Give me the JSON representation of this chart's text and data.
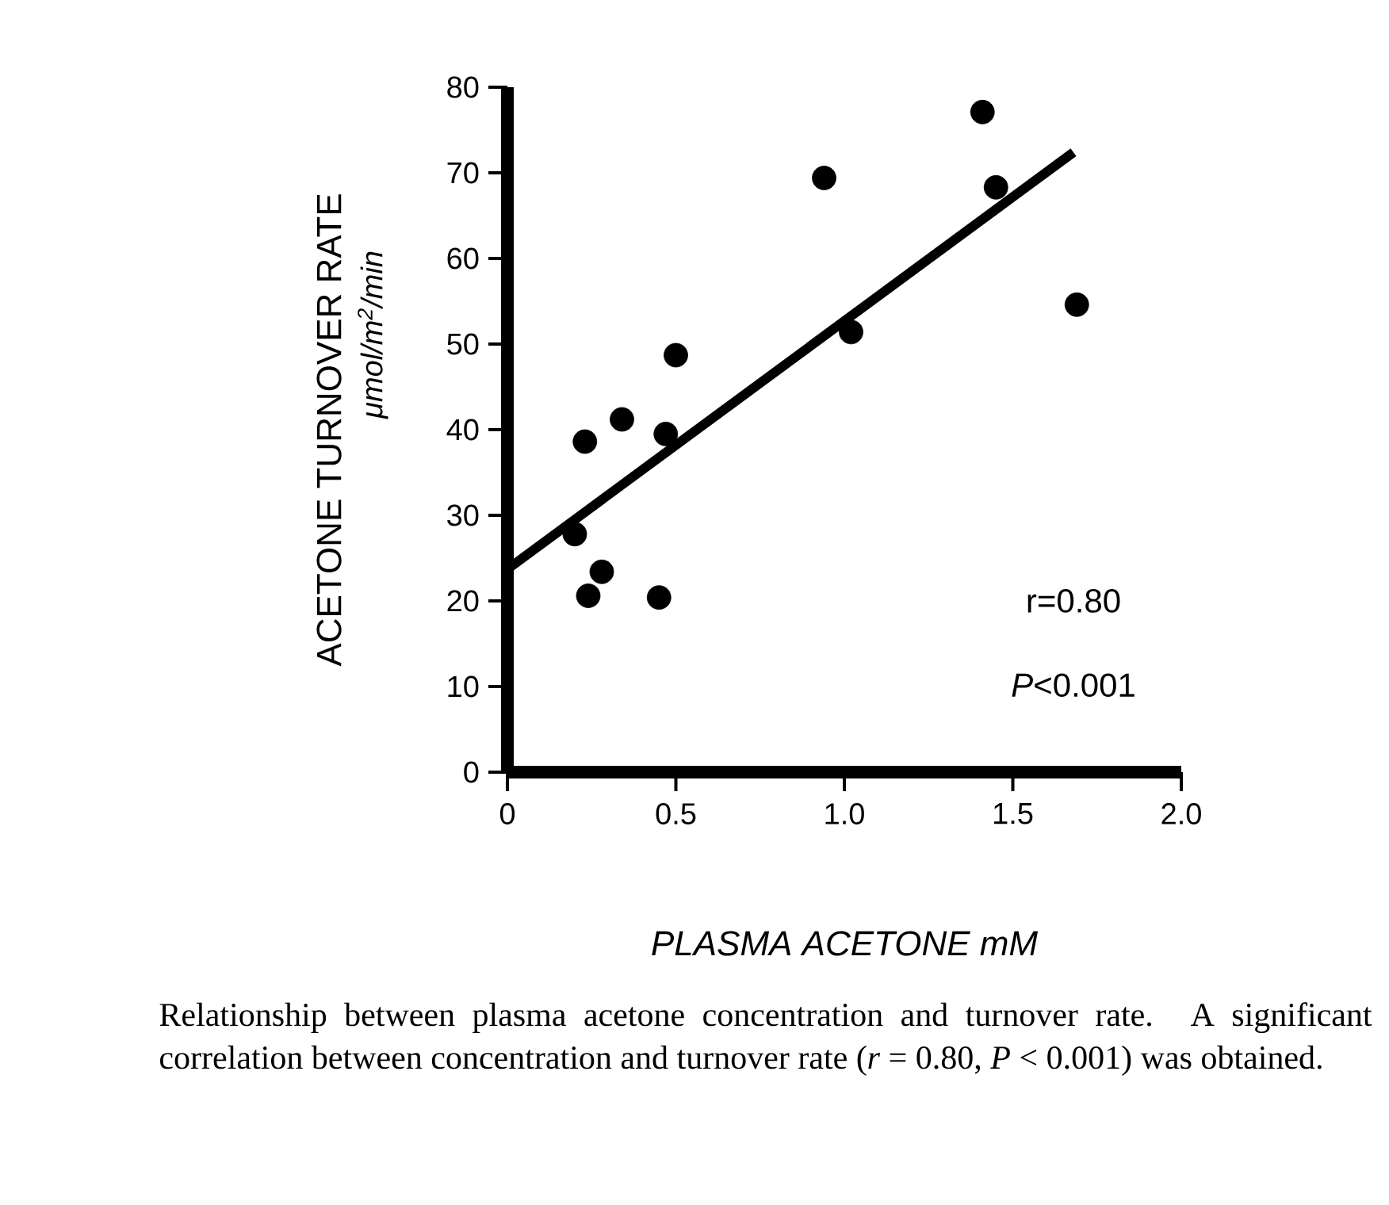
{
  "chart_data": {
    "type": "scatter",
    "xlabel": "PLASMA ACETONE  mM",
    "ylabel": "ACETONE TURNOVER RATE",
    "xlim": [
      0,
      2.0
    ],
    "ylim": [
      0,
      80
    ],
    "xticks": [
      0,
      0.5,
      {
        "value": 1,
        "label": "1.0"
      },
      1.5,
      {
        "value": 2,
        "label": "2.0"
      }
    ],
    "yticks": [
      0,
      10,
      20,
      30,
      40,
      50,
      60,
      70,
      80
    ],
    "series": [
      {
        "marker": "circle",
        "color": "#000000",
        "x": [
          1.41,
          0.94,
          1.45,
          1.69,
          1.02,
          0.5,
          0.34,
          0.23,
          0.47,
          0.2,
          0.28,
          0.24,
          0.45
        ],
        "values": [
          77.1,
          69.4,
          68.3,
          54.6,
          51.4,
          48.7,
          41.2,
          38.6,
          39.5,
          27.8,
          23.4,
          20.6,
          20.4
        ]
      },
      {
        "type": "line",
        "marker": "none",
        "color": "#000000",
        "x": [
          0,
          1.68
        ],
        "values": [
          23.7,
          72.4
        ]
      }
    ],
    "annotations": [
      "μmol/m$^{2}$/min",
      "r=0.80",
      "*P*<0.001",
      "Relationship between plasma acetone concentration and turnover rate. A significant correlation between concentration and turnover rate (*r* = 0.80, *P* < 0.001) was obtained."
    ]
  }
}
